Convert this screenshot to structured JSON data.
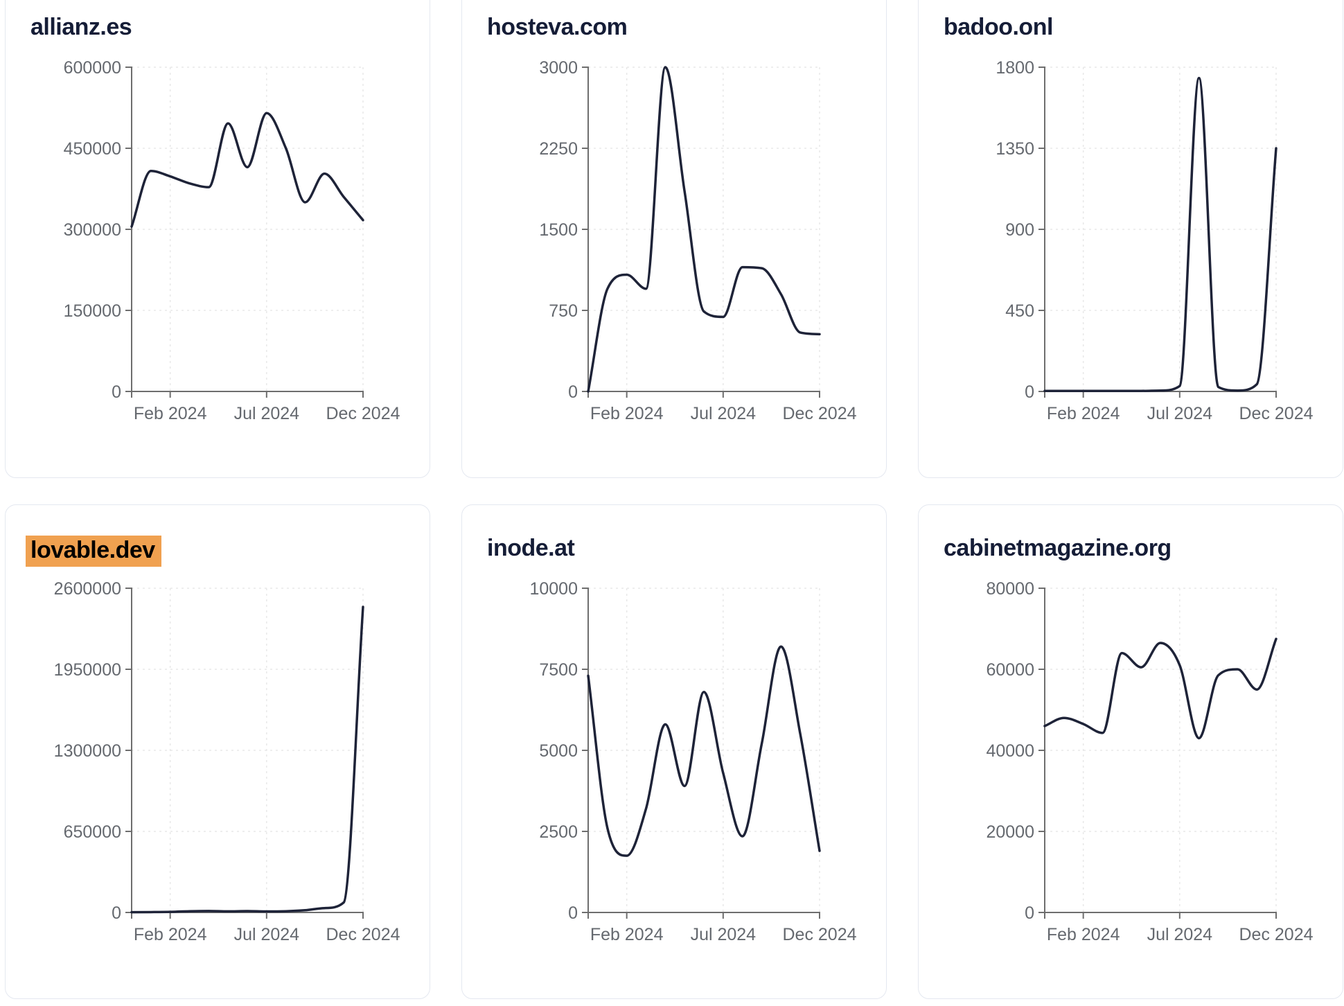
{
  "style": {
    "line_color": "#1e2338",
    "axis_color": "#6e6e6e",
    "grid_color": "#e8e8e8",
    "tick_label_color": "#65696f",
    "title_color": "#151d37",
    "highlight_color": "#F0A150",
    "card_border_color": "#e4e8f0"
  },
  "chart_config": {
    "months": [
      "Dec 2023",
      "Jan 2024",
      "Feb 2024",
      "Mar 2024",
      "Apr 2024",
      "May 2024",
      "Jun 2024",
      "Jul 2024",
      "Aug 2024",
      "Sep 2024",
      "Oct 2024",
      "Nov 2024",
      "Dec 2024"
    ],
    "x_ticks": [
      {
        "label": "Feb 2024",
        "index": 2
      },
      {
        "label": "Jul 2024",
        "index": 7
      },
      {
        "label": "Dec 2024",
        "index": 12
      }
    ]
  },
  "cards": [
    {
      "title": "allianz.es",
      "highlighted": false,
      "chart_data": {
        "type": "line",
        "x": [
          "Dec 2023",
          "Jan 2024",
          "Feb 2024",
          "Mar 2024",
          "Apr 2024",
          "May 2024",
          "Jun 2024",
          "Jul 2024",
          "Aug 2024",
          "Sep 2024",
          "Oct 2024",
          "Nov 2024",
          "Dec 2024"
        ],
        "values": [
          305000,
          408000,
          398000,
          385000,
          378000,
          496000,
          415000,
          515000,
          450000,
          350000,
          403000,
          360000,
          317000
        ],
        "yticks": [
          0,
          150000,
          300000,
          450000,
          600000
        ],
        "ylim": [
          0,
          600000
        ],
        "xlabel": "",
        "ylabel": "",
        "grid": true,
        "legend": false
      }
    },
    {
      "title": "hosteva.com",
      "highlighted": false,
      "chart_data": {
        "type": "line",
        "x": [
          "Dec 2023",
          "Jan 2024",
          "Feb 2024",
          "Mar 2024",
          "Apr 2024",
          "May 2024",
          "Jun 2024",
          "Jul 2024",
          "Aug 2024",
          "Sep 2024",
          "Oct 2024",
          "Nov 2024",
          "Dec 2024"
        ],
        "values": [
          0,
          950,
          1080,
          950,
          3000,
          1850,
          740,
          690,
          1150,
          1140,
          900,
          545,
          530
        ],
        "yticks": [
          0,
          750,
          1500,
          2250,
          3000
        ],
        "ylim": [
          0,
          3000
        ],
        "xlabel": "",
        "ylabel": "",
        "grid": true,
        "legend": false
      }
    },
    {
      "title": "badoo.onl",
      "highlighted": false,
      "chart_data": {
        "type": "line",
        "x": [
          "Dec 2023",
          "Jan 2024",
          "Feb 2024",
          "Mar 2024",
          "Apr 2024",
          "May 2024",
          "Jun 2024",
          "Jul 2024",
          "Aug 2024",
          "Sep 2024",
          "Oct 2024",
          "Nov 2024",
          "Dec 2024"
        ],
        "values": [
          3,
          3,
          3,
          3,
          3,
          3,
          5,
          30,
          1740,
          25,
          5,
          40,
          1350
        ],
        "yticks": [
          0,
          450,
          900,
          1350,
          1800
        ],
        "ylim": [
          0,
          1800
        ],
        "xlabel": "",
        "ylabel": "",
        "grid": true,
        "legend": false
      }
    },
    {
      "title": "lovable.dev",
      "highlighted": true,
      "chart_data": {
        "type": "line",
        "x": [
          "Dec 2023",
          "Jan 2024",
          "Feb 2024",
          "Mar 2024",
          "Apr 2024",
          "May 2024",
          "Jun 2024",
          "Jul 2024",
          "Aug 2024",
          "Sep 2024",
          "Oct 2024",
          "Nov 2024",
          "Dec 2024"
        ],
        "values": [
          2000,
          3000,
          5000,
          10000,
          12000,
          9000,
          11000,
          8000,
          10000,
          18000,
          35000,
          80000,
          2450000
        ],
        "yticks": [
          0,
          650000,
          1300000,
          1950000,
          2600000
        ],
        "ylim": [
          0,
          2600000
        ],
        "xlabel": "",
        "ylabel": "",
        "grid": true,
        "legend": false
      }
    },
    {
      "title": "inode.at",
      "highlighted": false,
      "chart_data": {
        "type": "line",
        "x": [
          "Dec 2023",
          "Jan 2024",
          "Feb 2024",
          "Mar 2024",
          "Apr 2024",
          "May 2024",
          "Jun 2024",
          "Jul 2024",
          "Aug 2024",
          "Sep 2024",
          "Oct 2024",
          "Nov 2024",
          "Dec 2024"
        ],
        "values": [
          7300,
          2600,
          1750,
          3200,
          5800,
          3900,
          6800,
          4300,
          2350,
          5200,
          8200,
          5500,
          1900
        ],
        "yticks": [
          0,
          2500,
          5000,
          7500,
          10000
        ],
        "ylim": [
          0,
          10000
        ],
        "xlabel": "",
        "ylabel": "",
        "grid": true,
        "legend": false
      }
    },
    {
      "title": "cabinetmagazine.org",
      "highlighted": false,
      "chart_data": {
        "type": "line",
        "x": [
          "Dec 2023",
          "Jan 2024",
          "Feb 2024",
          "Mar 2024",
          "Apr 2024",
          "May 2024",
          "Jun 2024",
          "Jul 2024",
          "Aug 2024",
          "Sep 2024",
          "Oct 2024",
          "Nov 2024",
          "Dec 2024"
        ],
        "values": [
          46000,
          48000,
          46500,
          44300,
          64000,
          60500,
          66500,
          61000,
          43000,
          58500,
          60000,
          55000,
          67500
        ],
        "yticks": [
          0,
          20000,
          40000,
          60000,
          80000
        ],
        "ylim": [
          0,
          80000
        ],
        "xlabel": "",
        "ylabel": "",
        "grid": true,
        "legend": false
      }
    }
  ]
}
